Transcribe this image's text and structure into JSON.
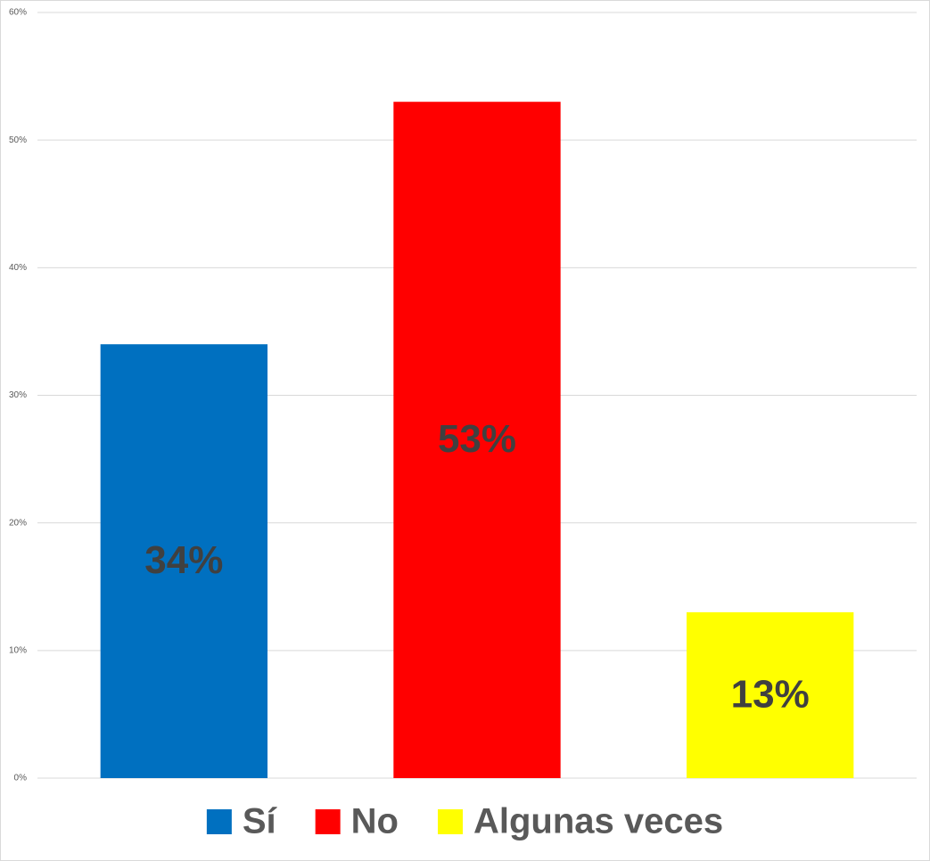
{
  "chart_data": {
    "type": "bar",
    "series": [
      {
        "name": "Sí",
        "color": "#0070c0",
        "values": [
          34
        ],
        "value_labels": [
          "34%"
        ]
      },
      {
        "name": "No",
        "color": "#ff0000",
        "values": [
          53
        ],
        "value_labels": [
          "53%"
        ]
      },
      {
        "name": "Algunas veces",
        "color": "#ffff00",
        "values": [
          13
        ],
        "value_labels": [
          "13%"
        ]
      }
    ],
    "ylim": [
      0,
      60
    ],
    "yticks": [
      {
        "value": 0,
        "label": "0%"
      },
      {
        "value": 10,
        "label": "10%"
      },
      {
        "value": 20,
        "label": "20%"
      },
      {
        "value": 30,
        "label": "30%"
      },
      {
        "value": 40,
        "label": "40%"
      },
      {
        "value": 50,
        "label": "50%"
      },
      {
        "value": 60,
        "label": "60%"
      }
    ],
    "grid": true,
    "legend": "bottom"
  }
}
